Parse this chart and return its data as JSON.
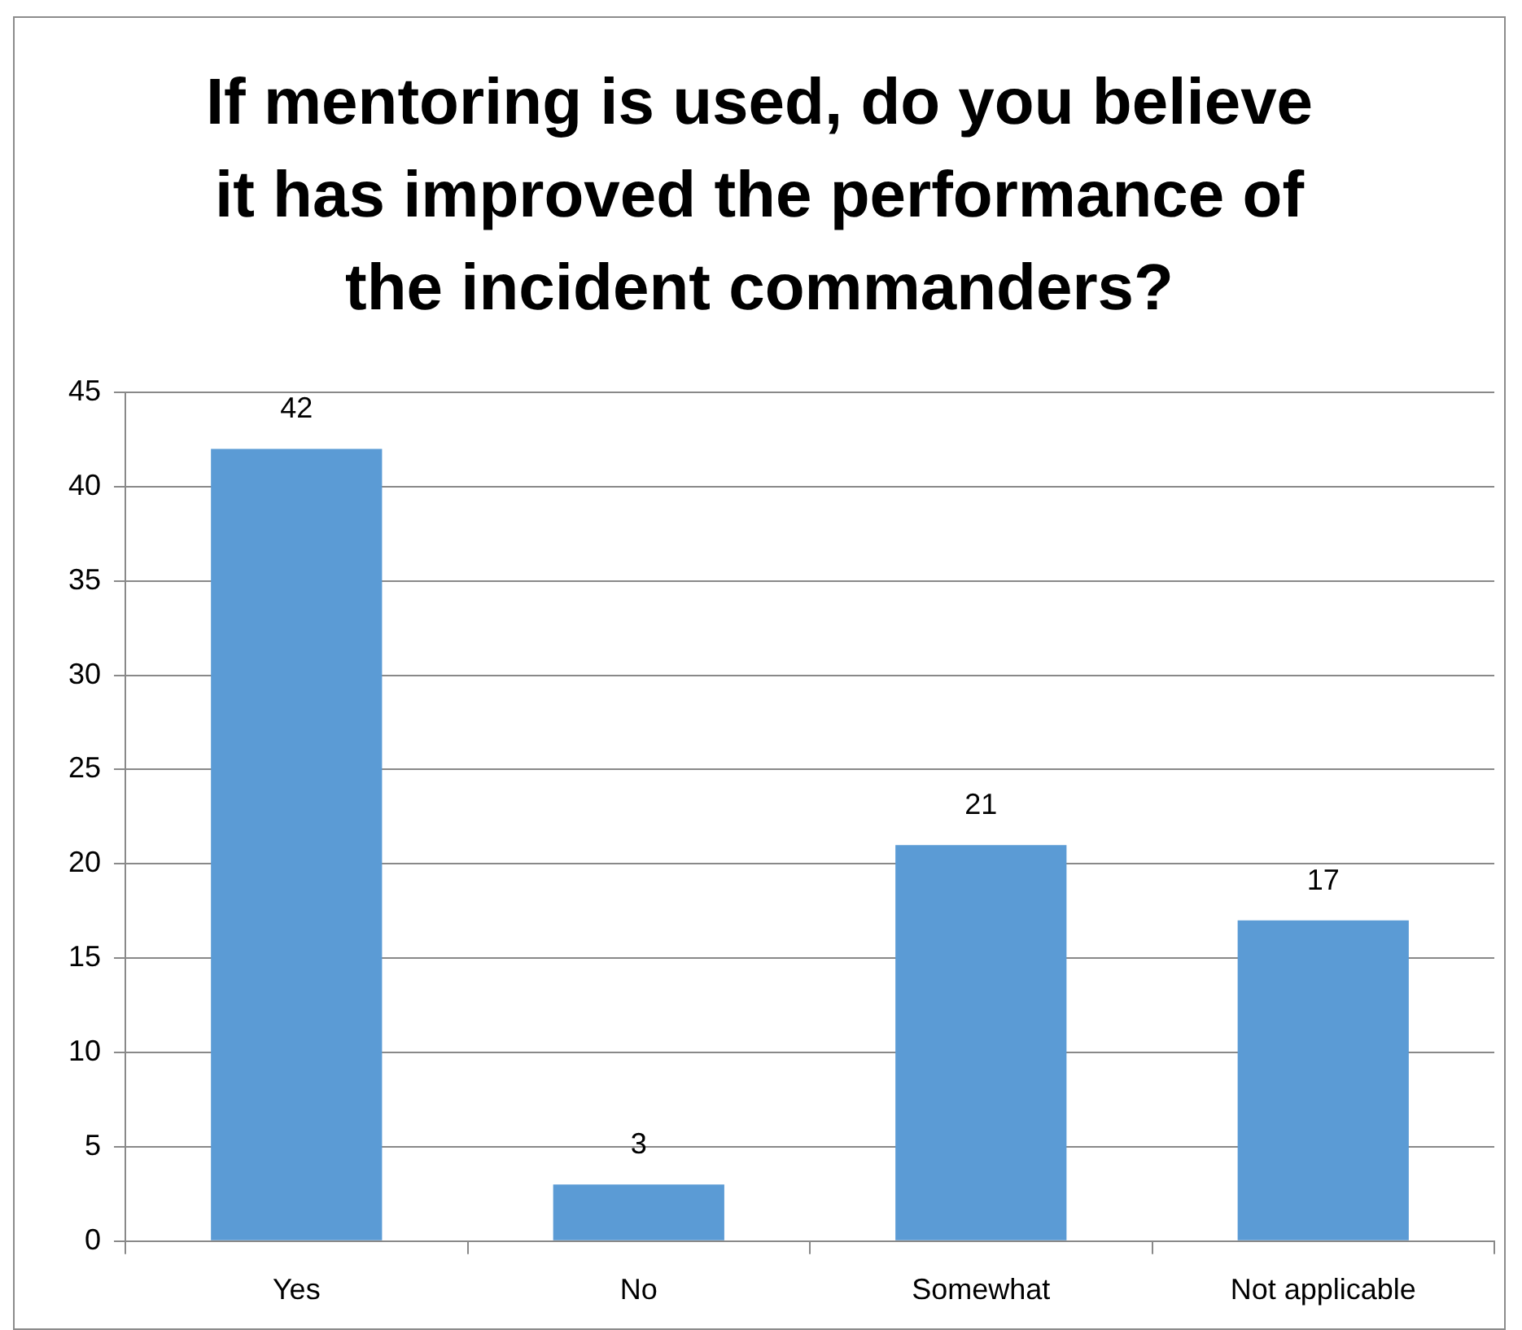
{
  "chart_data": {
    "type": "bar",
    "title": "If mentoring is used, do you believe it has improved the performance of the incident commanders?",
    "categories": [
      "Yes",
      "No",
      "Somewhat",
      "Not applicable"
    ],
    "values": [
      42,
      3,
      21,
      17
    ],
    "color": "#5b9bd5",
    "ylim": [
      0,
      45
    ],
    "yticks": [
      0,
      5,
      10,
      15,
      20,
      25,
      30,
      35,
      40,
      45
    ],
    "grid": "y",
    "data_labels": true
  }
}
